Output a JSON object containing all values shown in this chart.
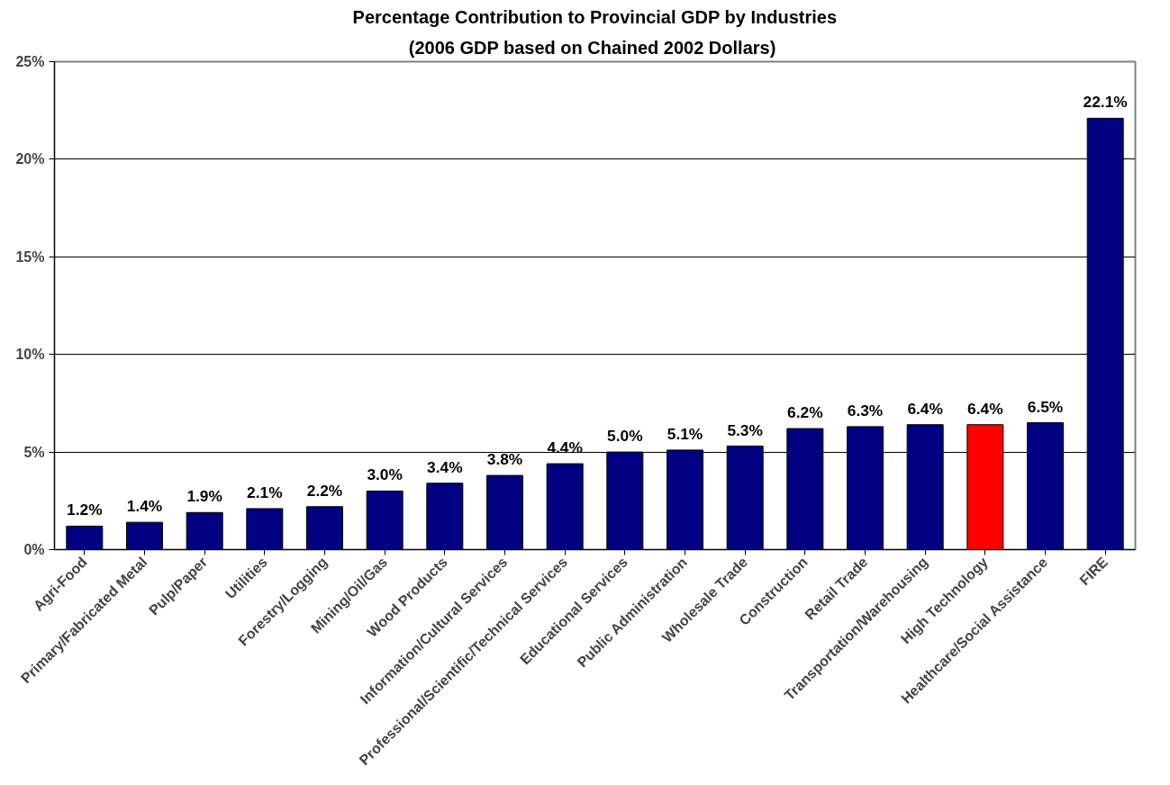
{
  "chart_data": {
    "type": "bar",
    "title": "Percentage Contribution to Provincial GDP by Industries",
    "subtitle": "(2006 GDP based on Chained 2002  Dollars)",
    "categories": [
      "Agri-Food",
      "Primary/Fabricated Metal",
      "Pulp/Paper",
      "Utilities",
      "Forestry/Logging",
      "Mining/Oil/Gas",
      "Wood Products",
      "Information/Cultural Services",
      "Professional/Scientific/Technical Services",
      "Educational Services",
      "Public Administration",
      "Wholesale Trade",
      "Construction",
      "Retail Trade",
      "Transportation/Warehousing",
      "High Technology",
      "Healthcare/Social Assistance",
      "FIRE"
    ],
    "values": [
      1.2,
      1.4,
      1.9,
      2.1,
      2.2,
      3.0,
      3.4,
      3.8,
      4.4,
      5.0,
      5.1,
      5.3,
      6.2,
      6.3,
      6.4,
      6.4,
      6.5,
      22.1
    ],
    "value_labels": [
      "1.2%",
      "1.4%",
      "1.9%",
      "2.1%",
      "2.2%",
      "3.0%",
      "3.4%",
      "3.8%",
      "4.4%",
      "5.0%",
      "5.1%",
      "5.3%",
      "6.2%",
      "6.3%",
      "6.4%",
      "6.4%",
      "6.5%",
      "22.1%"
    ],
    "colors": [
      "#000080",
      "#000080",
      "#000080",
      "#000080",
      "#000080",
      "#000080",
      "#000080",
      "#000080",
      "#000080",
      "#000080",
      "#000080",
      "#000080",
      "#000080",
      "#000080",
      "#000080",
      "#ff0000",
      "#000080",
      "#000080"
    ],
    "ylim": [
      0,
      25
    ],
    "yticks": [
      {
        "value": 0,
        "label": "0%"
      },
      {
        "value": 5,
        "label": "5%"
      },
      {
        "value": 10,
        "label": "10%"
      },
      {
        "value": 15,
        "label": "15%"
      },
      {
        "value": 20,
        "label": "20%"
      },
      {
        "value": 25,
        "label": "25%"
      }
    ],
    "grid": "y"
  }
}
